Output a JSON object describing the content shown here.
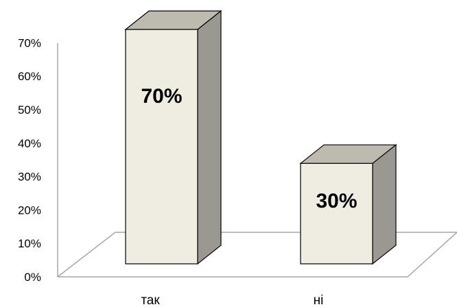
{
  "chart_data": {
    "type": "bar",
    "three_d": true,
    "categories": [
      "так",
      "ні"
    ],
    "values": [
      70,
      30
    ],
    "data_labels": [
      "70%",
      "30%"
    ],
    "y_tick_labels": [
      "0%",
      "10%",
      "20%",
      "30%",
      "40%",
      "50%",
      "60%",
      "70%"
    ],
    "ylim": [
      0,
      70
    ],
    "title": "",
    "xlabel": "",
    "ylabel": "",
    "grid": false,
    "legend": "none",
    "colors": {
      "bar_front": "#efede2",
      "bar_top": "#bdbbb0",
      "bar_side": "#9a9890",
      "outline": "#000000",
      "floor_line": "#a6a6a6",
      "axis_line": "#a6a6a6"
    }
  }
}
